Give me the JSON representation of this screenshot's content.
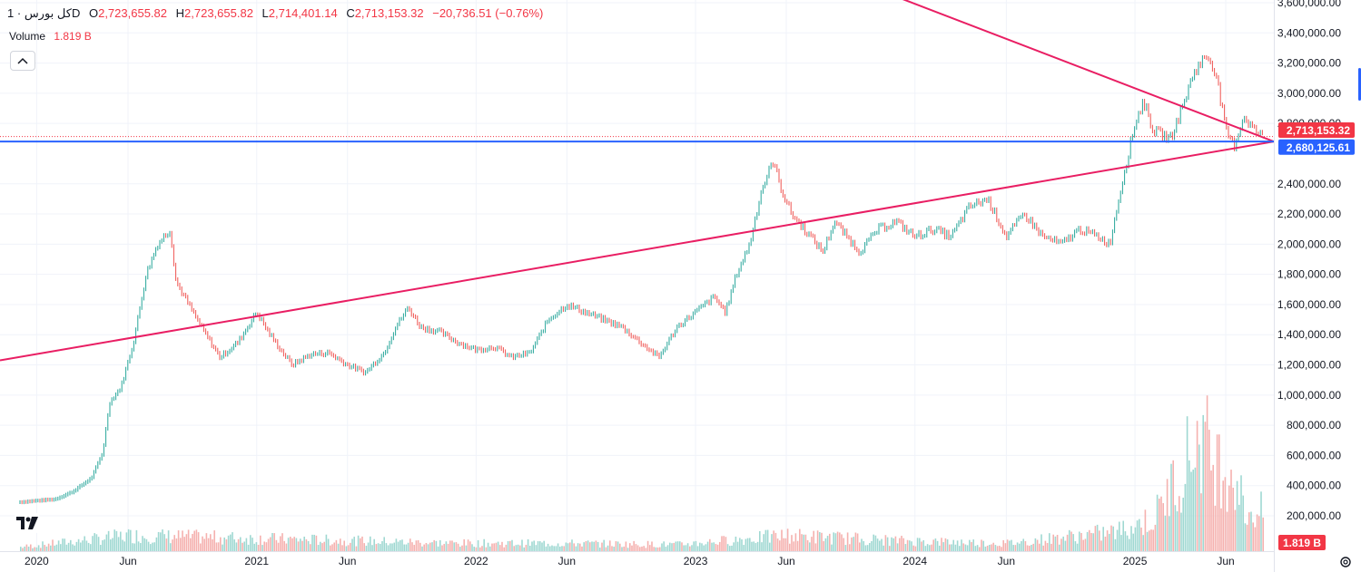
{
  "header": {
    "symbol": "کل بورس",
    "interval": "1D",
    "open_label": "O",
    "open": "2,723,655.82",
    "high_label": "H",
    "high": "2,723,655.82",
    "low_label": "L",
    "low": "2,714,401.14",
    "close_label": "C",
    "close": "2,713,153.32",
    "change": "−20,736.51 (−0.76%)"
  },
  "volume_legend": {
    "label": "Volume",
    "value": "1.819 B"
  },
  "price_axis": {
    "ticks": [
      "3,600,000.00",
      "3,400,000.00",
      "3,200,000.00",
      "3,000,000.00",
      "2,800,000.00",
      "2,400,000.00",
      "2,200,000.00",
      "2,000,000.00",
      "1,800,000.00",
      "1,600,000.00",
      "1,400,000.00",
      "1,200,000.00",
      "1,000,000.00",
      "800,000.00",
      "600,000.00",
      "400,000.00",
      "200,000.00"
    ],
    "last_price_label": "2,713,153.32",
    "hline_label": "2,680,125.61",
    "volume_label": "1.819 B"
  },
  "time_axis": {
    "labels": [
      "2020",
      "Jun",
      "2021",
      "Jun",
      "2022",
      "Jun",
      "2023",
      "Jun",
      "2024",
      "Jun",
      "2025",
      "Jun"
    ]
  },
  "colors": {
    "up": "#26a69a",
    "down": "#ef5350",
    "trendline": "#e91e63",
    "hline": "#2962ff",
    "last_price": "#f23645"
  },
  "chart_data": {
    "type": "line",
    "series": [
      {
        "name": "کل بورس",
        "x": [
          "2019-12-01",
          "2020-01-01",
          "2020-02-01",
          "2020-03-01",
          "2020-04-01",
          "2020-04-20",
          "2020-05-01",
          "2020-05-20",
          "2020-06-10",
          "2020-07-01",
          "2020-07-20",
          "2020-08-10",
          "2020-08-20",
          "2020-09-10",
          "2020-10-01",
          "2020-11-01",
          "2020-12-01",
          "2021-01-01",
          "2021-01-20",
          "2021-02-10",
          "2021-03-01",
          "2021-04-01",
          "2021-05-01",
          "2021-06-01",
          "2021-07-01",
          "2021-08-01",
          "2021-08-20",
          "2021-09-10",
          "2021-10-01",
          "2021-11-01",
          "2021-12-01",
          "2022-01-01",
          "2022-02-01",
          "2022-03-01",
          "2022-04-01",
          "2022-05-01",
          "2022-06-01",
          "2022-07-01",
          "2022-08-01",
          "2022-09-01",
          "2022-10-01",
          "2022-11-01",
          "2022-12-01",
          "2023-01-01",
          "2023-02-01",
          "2023-02-20",
          "2023-03-10",
          "2023-04-01",
          "2023-04-20",
          "2023-05-10",
          "2023-05-25",
          "2023-06-10",
          "2023-07-01",
          "2023-08-01",
          "2023-08-20",
          "2023-09-10",
          "2023-10-01",
          "2023-11-01",
          "2023-12-01",
          "2024-01-01",
          "2024-02-01",
          "2024-03-01",
          "2024-04-01",
          "2024-05-01",
          "2024-06-01",
          "2024-07-01",
          "2024-08-01",
          "2024-09-01",
          "2024-10-01",
          "2024-11-01",
          "2024-11-20",
          "2024-12-10",
          "2025-01-01",
          "2025-01-15",
          "2025-02-01",
          "2025-03-01",
          "2025-03-20",
          "2025-04-10",
          "2025-05-01",
          "2025-05-15",
          "2025-06-01",
          "2025-06-15",
          "2025-07-01",
          "2025-07-20",
          "2025-08-01"
        ],
        "values": [
          290000,
          300000,
          310000,
          360000,
          450000,
          620000,
          950000,
          1050000,
          1350000,
          1800000,
          2000000,
          2100000,
          1750000,
          1600000,
          1450000,
          1250000,
          1350000,
          1550000,
          1420000,
          1300000,
          1200000,
          1270000,
          1280000,
          1200000,
          1150000,
          1280000,
          1450000,
          1580000,
          1450000,
          1420000,
          1350000,
          1300000,
          1320000,
          1250000,
          1280000,
          1500000,
          1600000,
          1550000,
          1500000,
          1450000,
          1350000,
          1250000,
          1450000,
          1550000,
          1650000,
          1550000,
          1800000,
          2000000,
          2350000,
          2550000,
          2350000,
          2200000,
          2100000,
          1950000,
          2150000,
          2050000,
          1950000,
          2100000,
          2150000,
          2050000,
          2100000,
          2050000,
          2250000,
          2300000,
          2050000,
          2200000,
          2050000,
          2000000,
          2100000,
          2050000,
          2000000,
          2400000,
          2800000,
          2950000,
          2750000,
          2700000,
          2900000,
          3150000,
          3250000,
          3150000,
          2750000,
          2650000,
          2850000,
          2750000,
          2713153
        ]
      },
      {
        "name": "Volume",
        "x": [
          "2019-12-01",
          "2020-06-01",
          "2020-12-01",
          "2021-06-01",
          "2021-12-01",
          "2022-06-01",
          "2022-12-01",
          "2023-06-01",
          "2023-12-01",
          "2024-06-01",
          "2024-12-01",
          "2025-02-01",
          "2025-04-20",
          "2025-05-10",
          "2025-06-15",
          "2025-07-01"
        ],
        "values": [
          30000000,
          120000000,
          100000000,
          80000000,
          60000000,
          60000000,
          50000000,
          120000000,
          80000000,
          60000000,
          150000000,
          250000000,
          900000000,
          700000000,
          600000000,
          300000000
        ]
      }
    ],
    "y_range": [
      0,
      3600000
    ],
    "y_ticks": [
      200000,
      400000,
      600000,
      800000,
      1000000,
      1200000,
      1400000,
      1600000,
      1800000,
      2000000,
      2200000,
      2400000,
      2800000,
      3000000,
      3200000,
      3400000,
      3600000
    ],
    "x_range": [
      "2019-11-01",
      "2025-08-20"
    ],
    "horizontal_lines": [
      2713153.32,
      2680125.61
    ],
    "trendlines": [
      {
        "x1": "2019-11-01",
        "y1": 1230000,
        "x2": "2025-08-20",
        "y2": 2680125.61
      },
      {
        "x1": "2023-12-01",
        "y1": 3640000,
        "x2": "2025-08-20",
        "y2": 2680125.61
      }
    ],
    "legend": "top-left"
  }
}
